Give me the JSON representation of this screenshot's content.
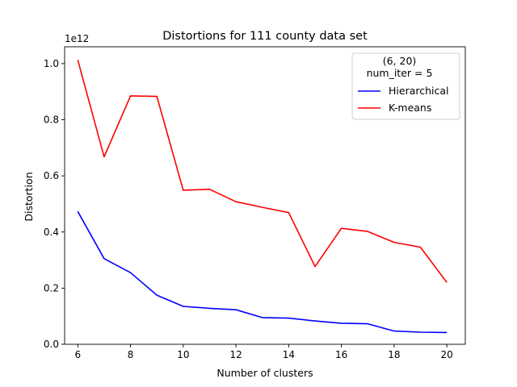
{
  "chart_data": {
    "type": "line",
    "title": "Distortions for 111 county data set",
    "xlabel": "Number of clusters",
    "ylabel": "Distortion",
    "y_offset_label": "1e12",
    "xlim": [
      5.5,
      20.7
    ],
    "ylim": [
      0,
      1.06
    ],
    "x_ticks": [
      6,
      8,
      10,
      12,
      14,
      16,
      18,
      20
    ],
    "x_tick_labels": [
      "6",
      "8",
      "10",
      "12",
      "14",
      "16",
      "18",
      "20"
    ],
    "y_ticks": [
      0,
      0.2,
      0.4,
      0.6,
      0.8,
      1.0
    ],
    "y_tick_labels": [
      "0.0",
      "0.2",
      "0.4",
      "0.6",
      "0.8",
      "1.0"
    ],
    "x": [
      6,
      7,
      8,
      9,
      10,
      11,
      12,
      13,
      14,
      15,
      16,
      17,
      18,
      19,
      20
    ],
    "series": [
      {
        "name": "Hierarchical",
        "color": "#0000ff",
        "values": [
          0.473,
          0.305,
          0.255,
          0.175,
          0.135,
          0.128,
          0.123,
          0.095,
          0.093,
          0.083,
          0.075,
          0.073,
          0.047,
          0.043,
          0.042
        ]
      },
      {
        "name": "K-means",
        "color": "#ff0000",
        "values": [
          1.013,
          0.668,
          0.885,
          0.883,
          0.549,
          0.552,
          0.508,
          0.488,
          0.469,
          0.277,
          0.413,
          0.402,
          0.363,
          0.346,
          0.22
        ]
      }
    ],
    "legend": {
      "position": "upper-right",
      "title_lines": [
        "(6, 20)",
        "num_iter = 5"
      ]
    },
    "grid": false
  }
}
